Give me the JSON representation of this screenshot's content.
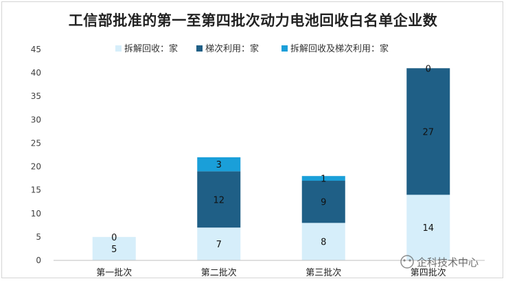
{
  "chart_data": {
    "type": "bar",
    "stacked": true,
    "title": "工信部批准的第一至第四批次动力电池回收白名单企业数",
    "categories": [
      "第一批次",
      "第二批次",
      "第三批次",
      "第四批次"
    ],
    "series": [
      {
        "name": "拆解回收：家",
        "values": [
          5,
          7,
          8,
          14
        ],
        "color": "#d6eefa"
      },
      {
        "name": "梯次利用：家",
        "values": [
          0,
          12,
          9,
          27
        ],
        "color": "#1f5f86"
      },
      {
        "name": "拆解回收及梯次利用：家",
        "values": [
          0,
          3,
          1,
          0
        ],
        "color": "#1a9fd9"
      }
    ],
    "data_labels": [
      [
        "5",
        "7",
        "8",
        "14"
      ],
      [
        "0",
        "12",
        "9",
        "27"
      ],
      [
        "",
        "3",
        "1",
        "0"
      ]
    ],
    "ylim": [
      0,
      45
    ],
    "yticks": [
      0,
      5,
      10,
      15,
      20,
      25,
      30,
      35,
      40,
      45
    ],
    "grid": false,
    "legend_position": "top"
  },
  "watermark": {
    "text": "企科技术中心"
  }
}
